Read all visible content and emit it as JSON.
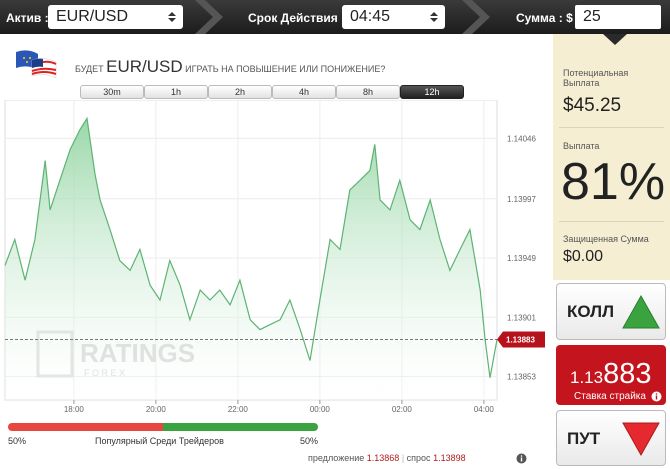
{
  "toolbar": {
    "asset_label": "Актив :",
    "asset": "EUR/USD",
    "expiry_label": "Срок Действия :",
    "expiry": "04:45",
    "amount_label": "Сумма : $",
    "amount": "25"
  },
  "header": {
    "prefix": "БУДЕТ",
    "asset": "EUR/USD",
    "question": "ИГРАТЬ НА ПОВЫШЕНИЕ ИЛИ ПОНИЖЕНИЕ?"
  },
  "timeframes": {
    "items": [
      "30m",
      "1h",
      "2h",
      "4h",
      "8h",
      "12h"
    ],
    "active": "12h"
  },
  "chart": {
    "type": "line",
    "color": "#5db374",
    "x": [
      16.32,
      16.56,
      16.81,
      17.05,
      17.3,
      17.42,
      17.66,
      17.91,
      18.15,
      18.32,
      18.52,
      18.64,
      18.88,
      19.12,
      19.37,
      19.61,
      19.86,
      20.1,
      20.34,
      20.59,
      20.83,
      21.08,
      21.32,
      21.56,
      21.81,
      22.05,
      22.3,
      22.54,
      22.78,
      23.03,
      23.27,
      23.52,
      23.76,
      24.0,
      24.25,
      24.49,
      24.73,
      24.98,
      25.22,
      25.34,
      25.47,
      25.71,
      25.95,
      26.2,
      26.44,
      26.69,
      26.93,
      27.17,
      27.42,
      27.66,
      27.91,
      28.03,
      28.15,
      28.32
    ],
    "values": [
      1.13943,
      1.13964,
      1.13931,
      1.13964,
      1.14028,
      1.13988,
      1.14012,
      1.14037,
      1.14053,
      1.14062,
      1.14016,
      1.13996,
      1.13972,
      1.13947,
      1.13939,
      1.13956,
      1.13927,
      1.13915,
      1.13947,
      1.13927,
      1.13899,
      1.13923,
      1.13915,
      1.13923,
      1.13911,
      1.13931,
      1.13899,
      1.13891,
      1.13895,
      1.13899,
      1.13915,
      1.13891,
      1.13866,
      1.13915,
      1.13964,
      1.13956,
      1.14004,
      1.14012,
      1.1402,
      1.14041,
      1.13996,
      1.13988,
      1.14012,
      1.1398,
      1.13972,
      1.13996,
      1.13964,
      1.13939,
      1.13956,
      1.13972,
      1.13923,
      1.13883,
      1.13852,
      1.13883
    ],
    "xlim": [
      16.32,
      28.32
    ],
    "xticks": [
      {
        "value": 18,
        "label": "18:00"
      },
      {
        "value": 20,
        "label": "20:00"
      },
      {
        "value": 22,
        "label": "22:00"
      },
      {
        "value": 24,
        "label": "00:00"
      },
      {
        "value": 26,
        "label": "02:00"
      },
      {
        "value": 28,
        "label": "04:00"
      }
    ],
    "ylim": [
      1.13834,
      1.14077
    ],
    "yticks": [
      1.13853,
      1.13901,
      1.13949,
      1.13997,
      1.14046
    ],
    "current": 1.13883,
    "grid": true,
    "watermark": "RATINGS",
    "watermark_sub": "F O R E X"
  },
  "popularity": {
    "values": [
      50,
      50
    ],
    "value_labels": [
      "50%",
      "50%"
    ],
    "colors": [
      "#e8473f",
      "#3aa33f"
    ],
    "label": "Популярный Среди Трейдеров"
  },
  "quotes": {
    "bid_label": "предложение",
    "bid": "1.13868",
    "ask_label": "спрос",
    "ask": "1.13898"
  },
  "payout_panel": {
    "potential_label": "Потенциальная Выплата",
    "potential": "$45.25",
    "payout_label": "Выплата",
    "payout": "81%",
    "protected_label": "Защищенная Сумма",
    "protected": "$0.00"
  },
  "call_button": "КОЛЛ",
  "strike": {
    "prefix": "1.13",
    "digits": "883",
    "label": "Ставка страйка"
  },
  "put_button": "ПУТ"
}
